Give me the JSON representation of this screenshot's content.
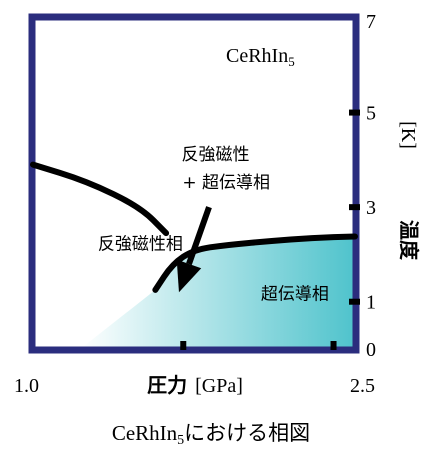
{
  "chart_data": {
    "type": "line",
    "title": "CeRhIn",
    "title_subscript": "5",
    "caption": "CeRhIn",
    "caption_subscript": "5",
    "caption_suffix": "における相図",
    "xlabel": "圧力",
    "xlabel_unit": "[GPa]",
    "ylabel": "温度",
    "ylabel_unit": "[K]",
    "xlim": [
      1.0,
      2.5
    ],
    "ylim": [
      0,
      7
    ],
    "x_tick_labels": [
      {
        "value": 1.0,
        "label": "1.0"
      },
      {
        "value": 2.5,
        "label": "2.5"
      }
    ],
    "x_tick_marks": [
      1.7,
      2.4
    ],
    "y_tick_labels": [
      {
        "value": 0,
        "label": "0"
      },
      {
        "value": 1,
        "label": "1"
      },
      {
        "value": 3,
        "label": "3"
      },
      {
        "value": 5,
        "label": "5"
      },
      {
        "value": 7,
        "label": "7"
      }
    ],
    "y_tick_marks": [
      1,
      3,
      5
    ],
    "grid": false,
    "series": [
      {
        "x": [
          1.0,
          1.25,
          1.5,
          1.62
        ],
        "y": [
          3.9,
          3.55,
          3.0,
          2.45
        ]
      },
      {
        "x": [
          1.57,
          1.65,
          1.75,
          1.9,
          2.1,
          2.3,
          2.5
        ],
        "y": [
          1.25,
          1.8,
          2.1,
          2.2,
          2.28,
          2.35,
          2.38
        ]
      }
    ],
    "region_labels": [
      {
        "text": "反強磁性相",
        "x": 1.5,
        "y": 2.1
      },
      {
        "text": "反強磁性",
        "x": 1.85,
        "y": 4.0
      },
      {
        "text": "+ 超伝導相",
        "x": 1.9,
        "y": 3.4
      },
      {
        "text": "超伝導相",
        "x": 2.22,
        "y": 1.05
      }
    ],
    "arrow": {
      "from": [
        1.82,
        3.0
      ],
      "to": [
        1.68,
        1.2
      ]
    },
    "colors": {
      "frame": "#2b2d7e",
      "line": "#000000",
      "superconducting_fill": "#4fc3cc"
    }
  }
}
